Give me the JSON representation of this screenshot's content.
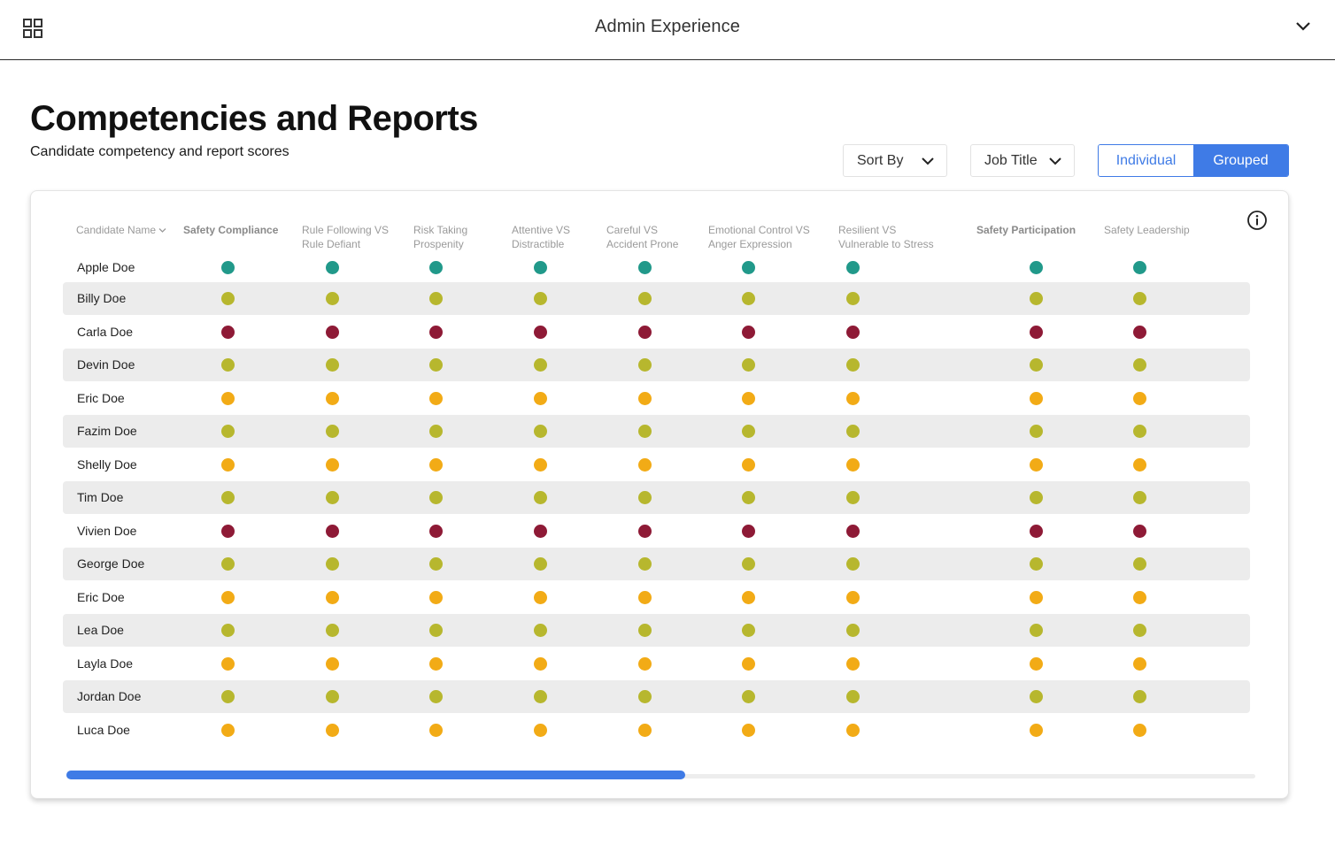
{
  "app": {
    "title": "Admin Experience"
  },
  "page": {
    "title": "Competencies and Reports",
    "subtitle": "Candidate competency and report scores"
  },
  "controls": {
    "sort_by": "Sort By",
    "job_title": "Job Title",
    "view_toggle": {
      "individual": "Individual",
      "grouped": "Grouped",
      "active": "Grouped"
    }
  },
  "colors": {
    "accent": "#3f7be6",
    "teal": "#21998a",
    "olive": "#b7b72e",
    "orange": "#f2ab16",
    "red": "#8e1a36"
  },
  "table": {
    "name_header": "Candidate Name",
    "columns": [
      {
        "line1": "Safety Compliance",
        "line2": "",
        "bold": true
      },
      {
        "line1": "Rule Following VS",
        "line2": "Rule Defiant",
        "bold": false
      },
      {
        "line1": "Risk Taking",
        "line2": "Prospenity",
        "bold": false
      },
      {
        "line1": "Attentive VS",
        "line2": "Distractible",
        "bold": false
      },
      {
        "line1": "Careful VS",
        "line2": "Accident Prone",
        "bold": false
      },
      {
        "line1": "Emotional Control VS",
        "line2": "Anger Expression",
        "bold": false
      },
      {
        "line1": "Resilient VS",
        "line2": "Vulnerable to Stress",
        "bold": false
      },
      {
        "line1": "Safety Participation",
        "line2": "",
        "bold": true
      },
      {
        "line1": "Safety Leadership",
        "line2": "",
        "bold": false
      }
    ],
    "rows": [
      {
        "name": "Apple Doe",
        "score": "teal"
      },
      {
        "name": "Billy Doe",
        "score": "olive"
      },
      {
        "name": "Carla Doe",
        "score": "red"
      },
      {
        "name": "Devin Doe",
        "score": "olive"
      },
      {
        "name": "Eric Doe",
        "score": "orange"
      },
      {
        "name": "Fazim Doe",
        "score": "olive"
      },
      {
        "name": "Shelly Doe",
        "score": "orange"
      },
      {
        "name": "Tim Doe",
        "score": "olive"
      },
      {
        "name": "Vivien Doe",
        "score": "red"
      },
      {
        "name": "George Doe",
        "score": "olive"
      },
      {
        "name": "Eric Doe",
        "score": "orange"
      },
      {
        "name": "Lea Doe",
        "score": "olive"
      },
      {
        "name": "Layla Doe",
        "score": "orange"
      },
      {
        "name": "Jordan Doe",
        "score": "olive"
      },
      {
        "name": "Luca Doe",
        "score": "orange"
      }
    ]
  },
  "scrollbar": {
    "position_fraction": 0.52
  }
}
